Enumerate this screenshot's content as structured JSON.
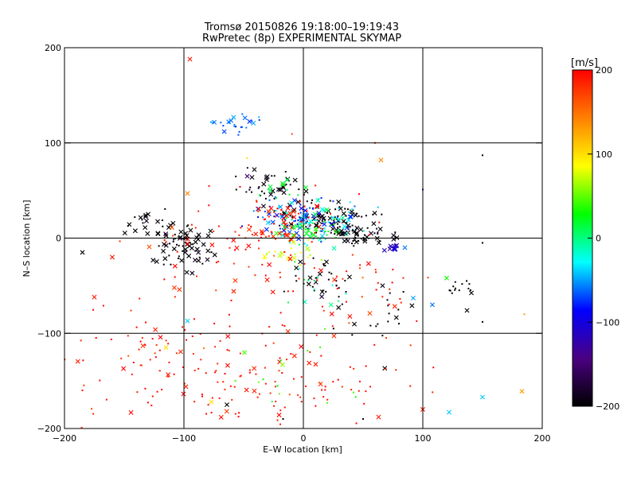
{
  "chart_data": {
    "type": "scatter",
    "title": "Tromsø 20150826 19:18:00–19:19:43",
    "subtitle": "RwPretec (8p) EXPERIMENTAL SKYMAP",
    "xlabel": "E–W location [km]",
    "ylabel": "N–S location [km]",
    "xlim": [
      -200,
      200
    ],
    "ylim": [
      -200,
      200
    ],
    "xticks": [
      "−200",
      "−100",
      "0",
      "100",
      "200"
    ],
    "yticks": [
      "−200",
      "−100",
      "0",
      "100",
      "200"
    ],
    "grid": true,
    "grid_lines": [
      -100,
      0,
      100
    ],
    "colorbar": {
      "unit": "[m/s]",
      "range": [
        -200,
        200
      ],
      "ticks": [
        "−200",
        "−100",
        "0",
        "100",
        "200"
      ],
      "colormap": [
        "#000000",
        "#4b0082",
        "#0000ff",
        "#00ffff",
        "#00ff00",
        "#ffff00",
        "#ff8000",
        "#ff0000"
      ]
    },
    "marker_types": [
      "cross",
      "dot"
    ],
    "clusters": [
      {
        "x": -59,
        "y": 119,
        "sx": 11,
        "sy": 5,
        "v": -60,
        "n": 25,
        "cross": 0.2
      },
      {
        "x": -100,
        "y": -7,
        "sx": 13,
        "sy": 13,
        "v": -200,
        "n": 75,
        "cross": 0.6
      },
      {
        "x": -137,
        "y": 16,
        "sx": 8,
        "sy": 8,
        "v": -200,
        "n": 14,
        "cross": 0.8
      },
      {
        "x": -28,
        "y": 55,
        "sx": 12,
        "sy": 8,
        "v": -200,
        "n": 35,
        "cross": 0.45
      },
      {
        "x": -20,
        "y": 50,
        "sx": 8,
        "sy": 6,
        "v": 10,
        "n": 12,
        "cross": 0.5
      },
      {
        "x": 18,
        "y": 22,
        "sx": 22,
        "sy": 10,
        "v": -200,
        "n": 90,
        "cross": 0.35
      },
      {
        "x": 0,
        "y": 20,
        "sx": 20,
        "sy": 12,
        "v": -75,
        "n": 70,
        "cross": 0.45
      },
      {
        "x": 5,
        "y": 15,
        "sx": 22,
        "sy": 12,
        "v": -25,
        "n": 60,
        "cross": 0.3
      },
      {
        "x": -15,
        "y": 25,
        "sx": 15,
        "sy": 8,
        "v": 190,
        "n": 35,
        "cross": 0.5
      },
      {
        "x": -20,
        "y": 4,
        "sx": 12,
        "sy": 4,
        "v": 190,
        "n": 30,
        "cross": 0.5
      },
      {
        "x": 10,
        "y": 10,
        "sx": 15,
        "sy": 8,
        "v": 25,
        "n": 35,
        "cross": 0.35
      },
      {
        "x": -10,
        "y": -15,
        "sx": 12,
        "sy": 5,
        "v": 80,
        "n": 22,
        "cross": 0.25
      },
      {
        "x": 50,
        "y": 3,
        "sx": 14,
        "sy": 6,
        "v": -200,
        "n": 50,
        "cross": 0.5
      },
      {
        "x": 75,
        "y": -10,
        "sx": 3,
        "sy": 2,
        "v": -110,
        "n": 12,
        "cross": 0.7
      },
      {
        "x": 20,
        "y": -45,
        "sx": 15,
        "sy": 12,
        "v": -200,
        "n": 35,
        "cross": 0.3
      },
      {
        "x": 10,
        "y": -50,
        "sx": 15,
        "sy": 15,
        "v": 0,
        "n": 12,
        "cross": 0.2
      },
      {
        "x": 130,
        "y": -50,
        "sx": 7,
        "sy": 5,
        "v": -200,
        "n": 14,
        "cross": 0.1
      },
      {
        "x": 60,
        "y": -60,
        "sx": 30,
        "sy": 25,
        "v": 180,
        "n": 25,
        "cross": 0.2
      },
      {
        "x": 70,
        "y": -85,
        "sx": 20,
        "sy": 20,
        "v": -200,
        "n": 20,
        "cross": 0.3
      },
      {
        "x": -50,
        "y": -20,
        "sx": 45,
        "sy": 35,
        "v": 190,
        "n": 80,
        "cross": 0.2
      },
      {
        "x": -80,
        "y": -140,
        "sx": 60,
        "sy": 35,
        "v": 190,
        "n": 170,
        "cross": 0.18
      },
      {
        "x": 30,
        "y": -140,
        "sx": 40,
        "sy": 35,
        "v": 190,
        "n": 40,
        "cross": 0.15
      },
      {
        "x": -10,
        "y": -130,
        "sx": 35,
        "sy": 35,
        "v": 40,
        "n": 15,
        "cross": 0.3
      }
    ],
    "points": [
      {
        "x": -95,
        "y": 188,
        "v": 190,
        "m": "cross"
      },
      {
        "x": 60,
        "y": 100,
        "v": 190,
        "m": "dot"
      },
      {
        "x": 65,
        "y": 82,
        "v": 140,
        "m": "cross"
      },
      {
        "x": -97,
        "y": 47,
        "v": 140,
        "m": "cross"
      },
      {
        "x": -47,
        "y": 84,
        "v": 100,
        "m": "dot"
      },
      {
        "x": -47,
        "y": 65,
        "v": -150,
        "m": "cross"
      },
      {
        "x": -160,
        "y": -20,
        "v": 190,
        "m": "cross"
      },
      {
        "x": -175,
        "y": -62,
        "v": 190,
        "m": "cross"
      },
      {
        "x": -185,
        "y": -15,
        "v": -200,
        "m": "cross"
      },
      {
        "x": 150,
        "y": 87,
        "v": -200,
        "m": "dot"
      },
      {
        "x": 100,
        "y": 51,
        "v": -80,
        "m": "dot"
      },
      {
        "x": 120,
        "y": -42,
        "v": 30,
        "m": "cross"
      },
      {
        "x": 137,
        "y": -76,
        "v": -200,
        "m": "cross"
      },
      {
        "x": 108,
        "y": -70,
        "v": -60,
        "m": "cross"
      },
      {
        "x": 92,
        "y": -63,
        "v": -50,
        "m": "cross"
      },
      {
        "x": 85,
        "y": -10,
        "v": -60,
        "m": "cross"
      },
      {
        "x": 150,
        "y": -5,
        "v": -200,
        "m": "dot"
      },
      {
        "x": 150,
        "y": -88,
        "v": -200,
        "m": "dot"
      },
      {
        "x": 183,
        "y": -161,
        "v": 130,
        "m": "cross"
      },
      {
        "x": 150,
        "y": -167,
        "v": -40,
        "m": "cross"
      },
      {
        "x": 122,
        "y": -183,
        "v": -40,
        "m": "cross"
      },
      {
        "x": 100,
        "y": -180,
        "v": 190,
        "m": "cross"
      },
      {
        "x": 63,
        "y": -188,
        "v": 190,
        "m": "cross"
      },
      {
        "x": 185,
        "y": -80,
        "v": 130,
        "m": "dot"
      },
      {
        "x": -77,
        "y": -172,
        "v": 100,
        "m": "cross"
      },
      {
        "x": -97,
        "y": -87,
        "v": -40,
        "m": "cross"
      },
      {
        "x": -115,
        "y": -115,
        "v": 100,
        "m": "cross"
      },
      {
        "x": -17,
        "y": -190,
        "v": -200,
        "m": "dot"
      },
      {
        "x": 50,
        "y": -190,
        "v": -200,
        "m": "dot"
      },
      {
        "x": -57,
        "y": -150,
        "v": 40,
        "m": "dot"
      },
      {
        "x": -64,
        "y": -175,
        "v": -200,
        "m": "cross"
      }
    ]
  }
}
